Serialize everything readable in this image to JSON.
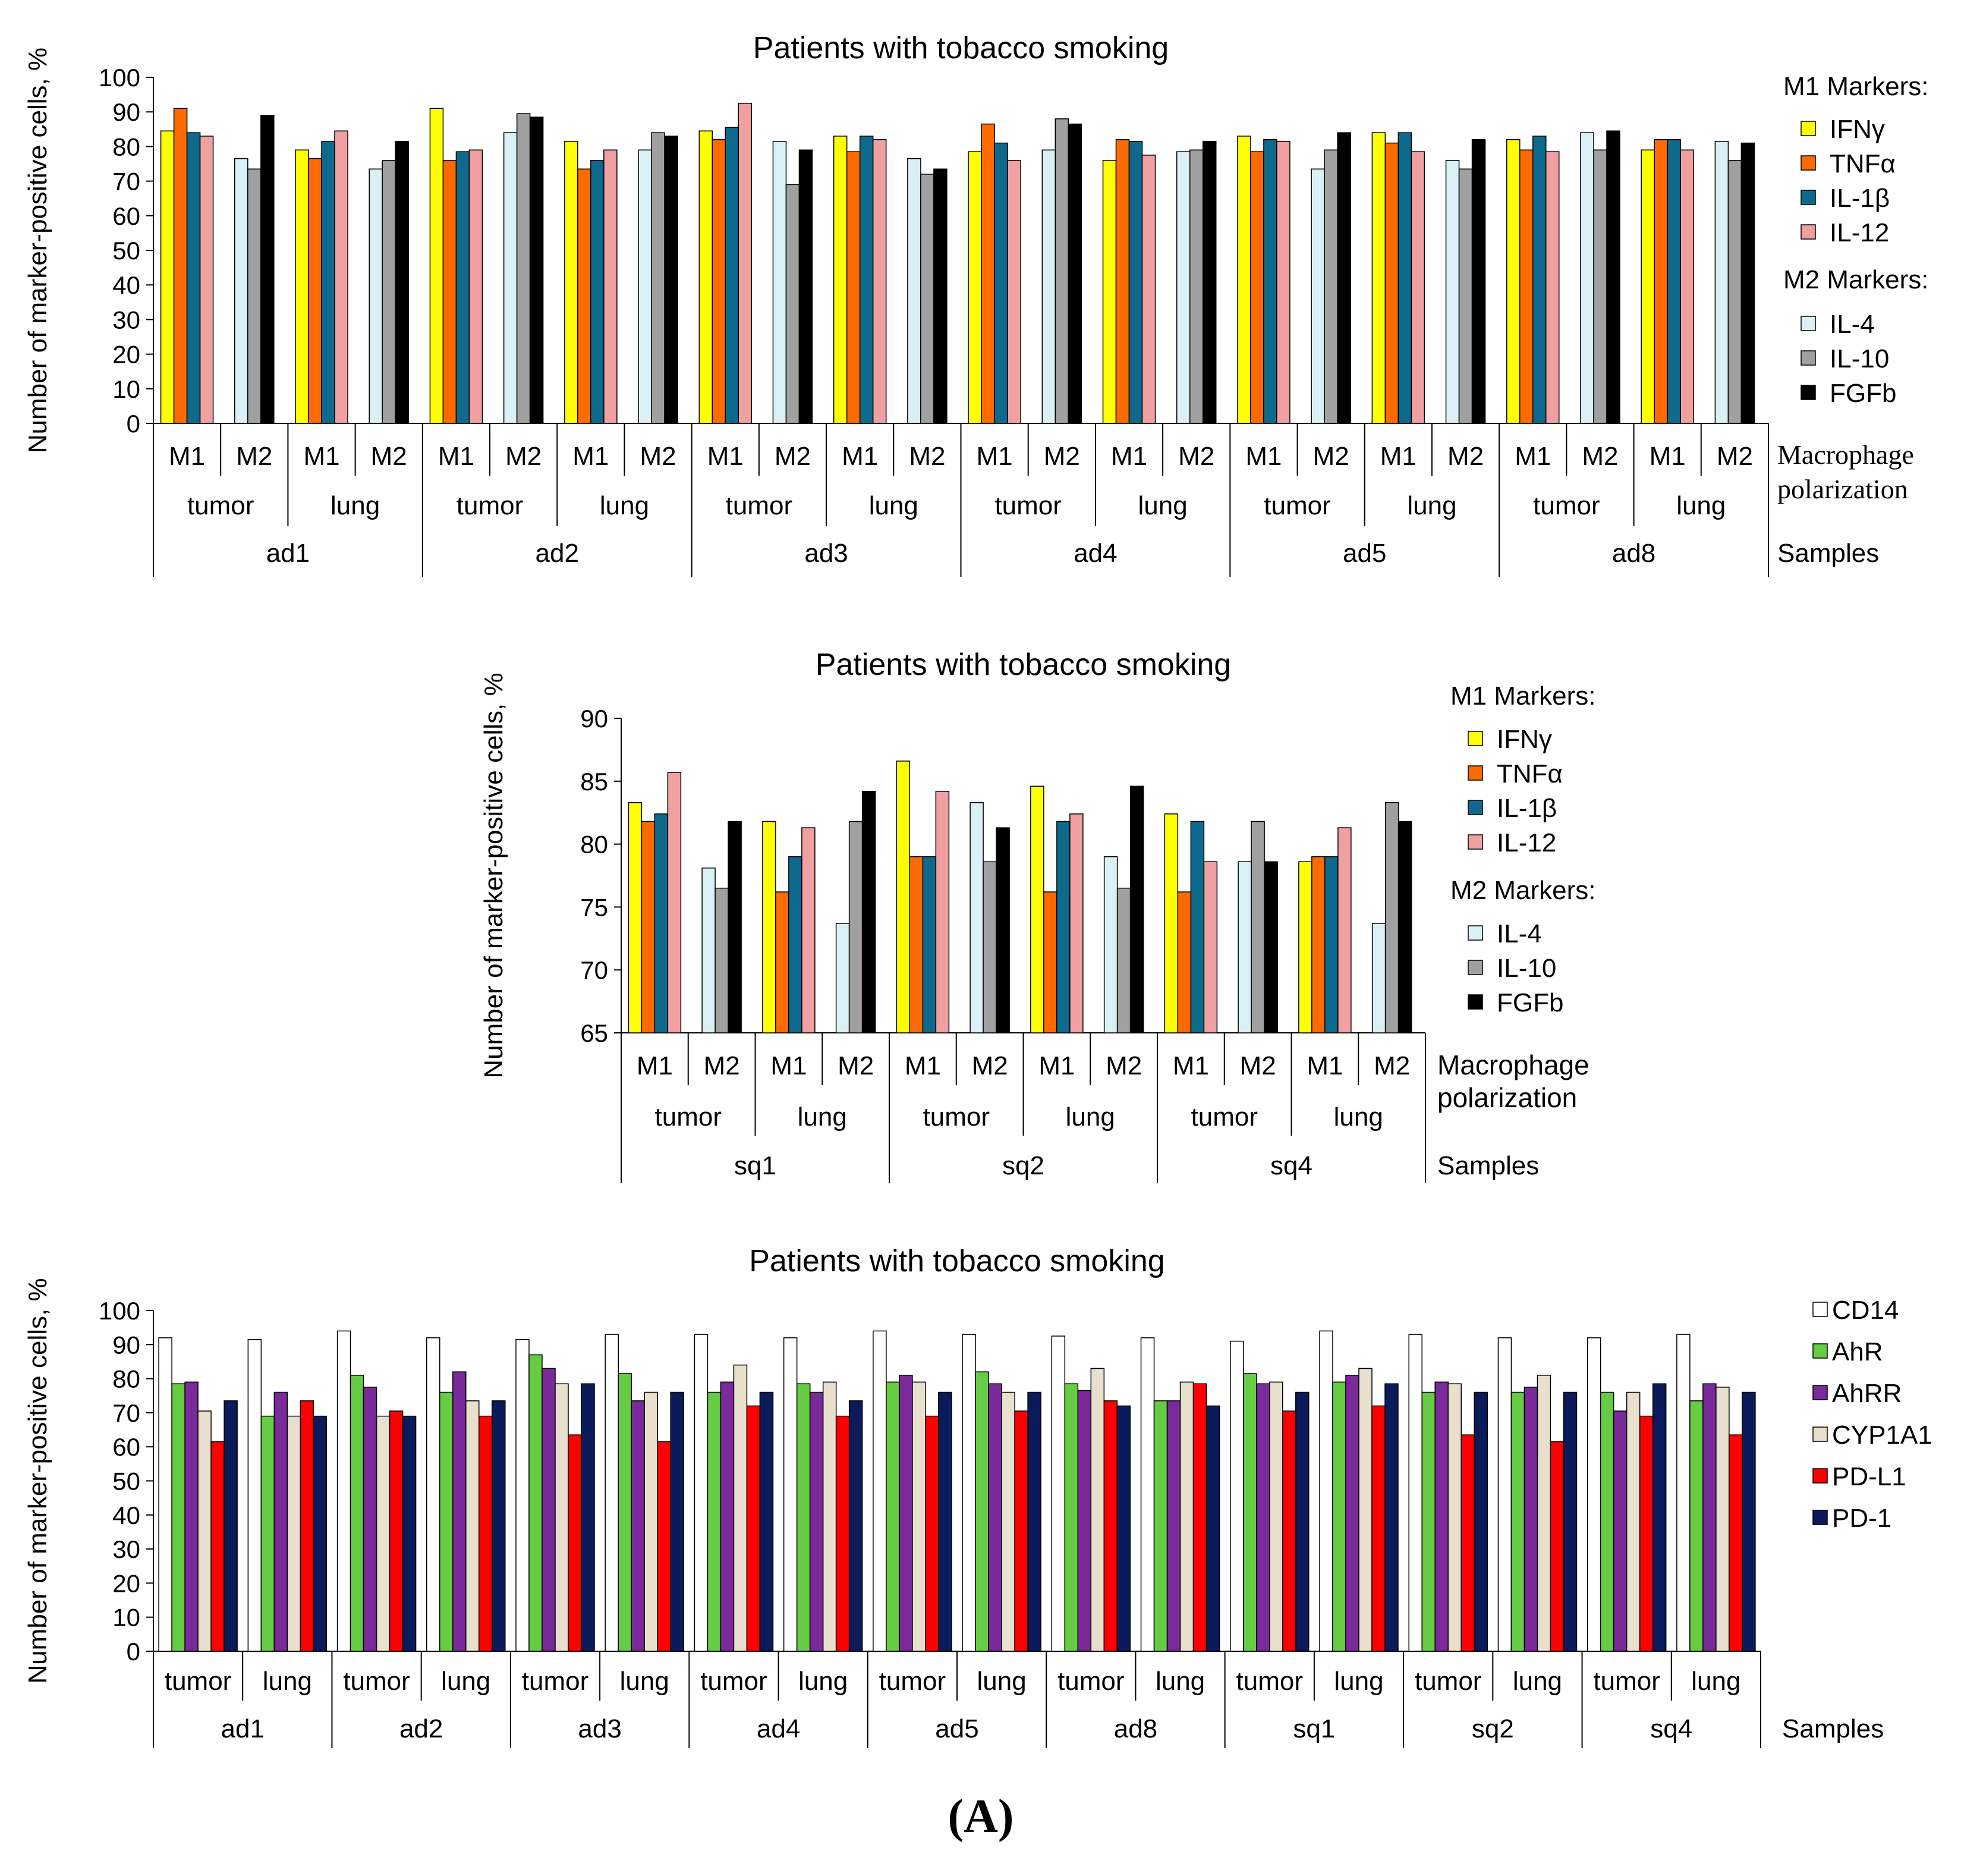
{
  "figure_label": "(A)",
  "colors": {
    "IFNγ": "#ffff00",
    "TNFα": "#ff6a00",
    "IL-1β": "#0e6a8c",
    "IL-12": "#f0a0a0",
    "IL-4": "#d9f0f5",
    "IL-10": "#a0a0a0",
    "FGFb": "#000000",
    "CD14": "#ffffff",
    "AhR": "#66cc44",
    "AhRR": "#7a2a9a",
    "CYP1A1": "#e8e0cc",
    "PD-L1": "#ff0000",
    "PD-1": "#0a1a5a"
  },
  "chart_data": [
    {
      "type": "bar",
      "title": "Patients with tobacco smoking",
      "ylabel": "Number of marker-positive cells, %",
      "ylim": [
        0,
        100
      ],
      "ytick_step": 10,
      "level1_label": "Macrophage polarization",
      "level3_label": "Samples",
      "legend": {
        "group1_title": "M1 Markers:",
        "group1": [
          "IFNγ",
          "TNFα",
          "IL-1β",
          "IL-12"
        ],
        "group2_title": "M2 Markers:",
        "group2": [
          "IL-4",
          "IL-10",
          "FGFb"
        ]
      },
      "samples": [
        {
          "name": "ad1",
          "tissues": [
            {
              "name": "tumor",
              "M1": [
                84.5,
                91,
                84,
                83
              ],
              "M2": [
                76.5,
                73.5,
                89
              ]
            },
            {
              "name": "lung",
              "M1": [
                79,
                76.5,
                81.5,
                84.5
              ],
              "M2": [
                73.5,
                76,
                81.5
              ]
            }
          ]
        },
        {
          "name": "ad2",
          "tissues": [
            {
              "name": "tumor",
              "M1": [
                91,
                76,
                78.5,
                79
              ],
              "M2": [
                84,
                89.5,
                88.5
              ]
            },
            {
              "name": "lung",
              "M1": [
                81.5,
                73.5,
                76,
                79
              ],
              "M2": [
                79,
                84,
                83
              ]
            }
          ]
        },
        {
          "name": "ad3",
          "tissues": [
            {
              "name": "tumor",
              "M1": [
                84.5,
                82,
                85.5,
                92.5
              ],
              "M2": [
                81.5,
                69,
                79
              ]
            },
            {
              "name": "lung",
              "M1": [
                83,
                78.5,
                83,
                82
              ],
              "M2": [
                76.5,
                72,
                73.5
              ]
            }
          ]
        },
        {
          "name": "ad4",
          "tissues": [
            {
              "name": "tumor",
              "M1": [
                78.5,
                86.5,
                81,
                76
              ],
              "M2": [
                79,
                88,
                86.5
              ]
            },
            {
              "name": "lung",
              "M1": [
                76,
                82,
                81.5,
                77.5
              ],
              "M2": [
                78.5,
                79,
                81.5
              ]
            }
          ]
        },
        {
          "name": "ad5",
          "tissues": [
            {
              "name": "tumor",
              "M1": [
                83,
                78.5,
                82,
                81.5
              ],
              "M2": [
                73.5,
                79,
                84
              ]
            },
            {
              "name": "lung",
              "M1": [
                84,
                81,
                84,
                78.5
              ],
              "M2": [
                76,
                73.5,
                82
              ]
            }
          ]
        },
        {
          "name": "ad8",
          "tissues": [
            {
              "name": "tumor",
              "M1": [
                82,
                79,
                83,
                78.5
              ],
              "M2": [
                84,
                79,
                84.5
              ]
            },
            {
              "name": "lung",
              "M1": [
                79,
                82,
                82,
                79
              ],
              "M2": [
                81.5,
                76,
                81
              ]
            }
          ]
        }
      ]
    },
    {
      "type": "bar",
      "title": "Patients with tobacco smoking",
      "ylabel": "Number of marker-positive cells, %",
      "ylim": [
        65,
        90
      ],
      "ytick_step": 5,
      "level1_label": "Macrophage polarization",
      "level3_label": "Samples",
      "legend": {
        "group1_title": "M1 Markers:",
        "group1": [
          "IFNγ",
          "TNFα",
          "IL-1β",
          "IL-12"
        ],
        "group2_title": "M2 Markers:",
        "group2": [
          "IL-4",
          "IL-10",
          "FGFb"
        ]
      },
      "samples": [
        {
          "name": "sq1",
          "tissues": [
            {
              "name": "tumor",
              "M1": [
                83.3,
                81.8,
                82.4,
                85.7
              ],
              "M2": [
                78.1,
                76.5,
                81.8
              ]
            },
            {
              "name": "lung",
              "M1": [
                81.8,
                76.2,
                79,
                81.3
              ],
              "M2": [
                73.7,
                81.8,
                84.2
              ]
            }
          ]
        },
        {
          "name": "sq2",
          "tissues": [
            {
              "name": "tumor",
              "M1": [
                86.6,
                79,
                79,
                84.2
              ],
              "M2": [
                83.3,
                78.6,
                81.3
              ]
            },
            {
              "name": "lung",
              "M1": [
                84.6,
                76.2,
                81.8,
                82.4
              ],
              "M2": [
                79,
                76.5,
                84.6
              ]
            }
          ]
        },
        {
          "name": "sq4",
          "tissues": [
            {
              "name": "tumor",
              "M1": [
                82.4,
                76.2,
                81.8,
                78.6
              ],
              "M2": [
                78.6,
                81.8,
                78.6
              ]
            },
            {
              "name": "lung",
              "M1": [
                78.6,
                79,
                79,
                81.3
              ],
              "M2": [
                73.7,
                83.3,
                81.8
              ]
            }
          ]
        }
      ]
    },
    {
      "type": "bar",
      "title": "Patients with tobacco smoking",
      "ylabel": "Number of marker-positive cells, %",
      "ylim": [
        0,
        100
      ],
      "ytick_step": 10,
      "level2_label": "Samples",
      "series": [
        "CD14",
        "AhR",
        "AhRR",
        "CYP1A1",
        "PD-L1",
        "PD-1"
      ],
      "samples": [
        {
          "name": "ad1",
          "tumor": [
            92,
            78.5,
            79,
            70.5,
            61.5,
            73.5
          ],
          "lung": [
            91.5,
            69,
            76,
            69,
            73.5,
            69
          ]
        },
        {
          "name": "ad2",
          "tumor": [
            94,
            81,
            77.5,
            69,
            70.5,
            69
          ],
          "lung": [
            92,
            76,
            82,
            73.5,
            69,
            73.5
          ]
        },
        {
          "name": "ad3",
          "tumor": [
            91.5,
            87,
            83,
            78.5,
            63.5,
            78.5
          ],
          "lung": [
            93,
            81.5,
            73.5,
            76,
            61.5,
            76
          ]
        },
        {
          "name": "ad4",
          "tumor": [
            93,
            76,
            79,
            84,
            72,
            76
          ],
          "lung": [
            92,
            78.5,
            76,
            79,
            69,
            73.5
          ]
        },
        {
          "name": "ad5",
          "tumor": [
            94,
            79,
            81,
            79,
            69,
            76
          ],
          "lung": [
            93,
            82,
            78.5,
            76,
            70.5,
            76
          ]
        },
        {
          "name": "ad8",
          "tumor": [
            92.5,
            78.5,
            76.5,
            83,
            73.5,
            72
          ],
          "lung": [
            92,
            73.5,
            73.5,
            79,
            78.5,
            72
          ]
        },
        {
          "name": "sq1",
          "tumor": [
            91,
            81.5,
            78.5,
            79,
            70.5,
            76
          ],
          "lung": [
            94,
            79,
            81,
            83,
            72,
            78.5
          ]
        },
        {
          "name": "sq2",
          "tumor": [
            93,
            76,
            79,
            78.5,
            63.5,
            76
          ],
          "lung": [
            92,
            76,
            77.5,
            81,
            61.5,
            76
          ]
        },
        {
          "name": "sq4",
          "tumor": [
            92,
            76,
            70.5,
            76,
            69,
            78.5
          ],
          "lung": [
            93,
            73.5,
            78.5,
            77.5,
            63.5,
            76
          ]
        }
      ]
    }
  ]
}
